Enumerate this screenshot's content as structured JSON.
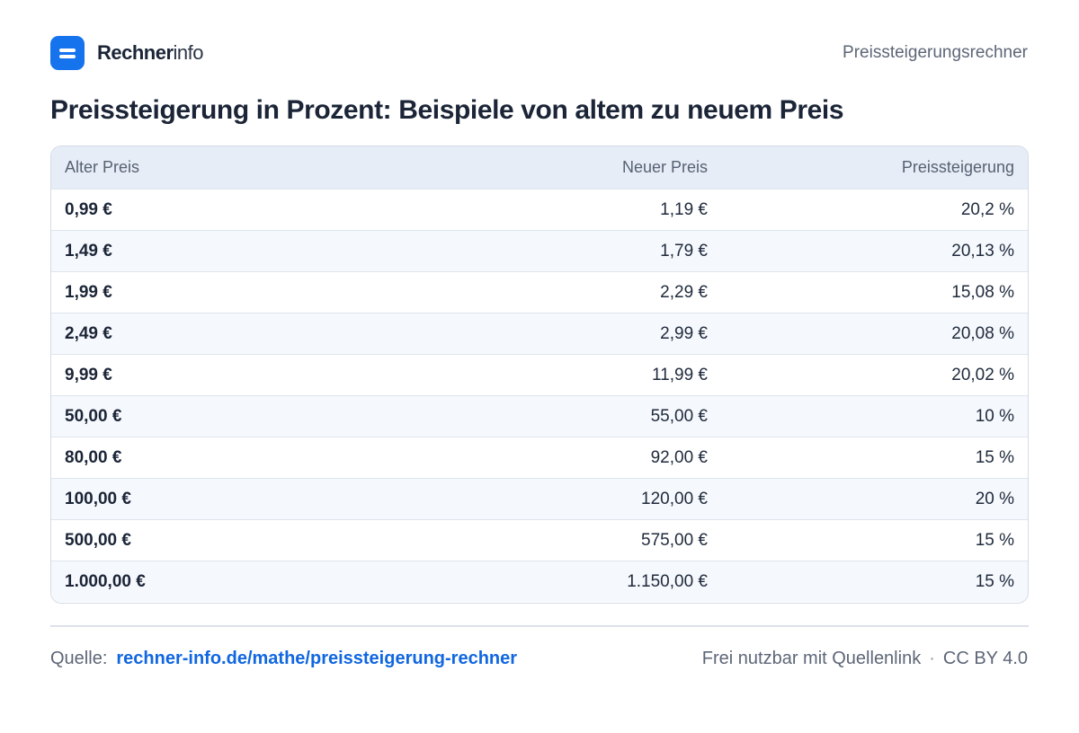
{
  "header": {
    "brand_strong": "Rechner",
    "brand_light": "info",
    "right_label": "Preissteigerungsrechner"
  },
  "title": "Preissteigerung in Prozent: Beispiele von altem zu neuem Preis",
  "table": {
    "columns": [
      "Alter Preis",
      "Neuer Preis",
      "Preissteigerung"
    ],
    "rows": [
      [
        "0,99 €",
        "1,19 €",
        "20,2 %"
      ],
      [
        "1,49 €",
        "1,79 €",
        "20,13 %"
      ],
      [
        "1,99 €",
        "2,29 €",
        "15,08 %"
      ],
      [
        "2,49 €",
        "2,99 €",
        "20,08 %"
      ],
      [
        "9,99 €",
        "11,99 €",
        "20,02 %"
      ],
      [
        "50,00 €",
        "55,00 €",
        "10 %"
      ],
      [
        "80,00 €",
        "92,00 €",
        "15 %"
      ],
      [
        "100,00 €",
        "120,00 €",
        "20 %"
      ],
      [
        "500,00 €",
        "575,00 €",
        "15 %"
      ],
      [
        "1.000,00 €",
        "1.150,00 €",
        "15 %"
      ]
    ]
  },
  "footer": {
    "source_label": "Quelle:",
    "source_link": "rechner-info.de/mathe/preissteigerung-rechner",
    "license_text": "Frei nutzbar mit Quellenlink",
    "separator": "·",
    "license": "CC BY 4.0"
  },
  "colors": {
    "accent": "#1673ee",
    "link": "#1167e0",
    "header_row": "#e7edf6",
    "alt_row": "#f5f8fc"
  },
  "icons": {
    "logo": "menu-lines-icon"
  }
}
